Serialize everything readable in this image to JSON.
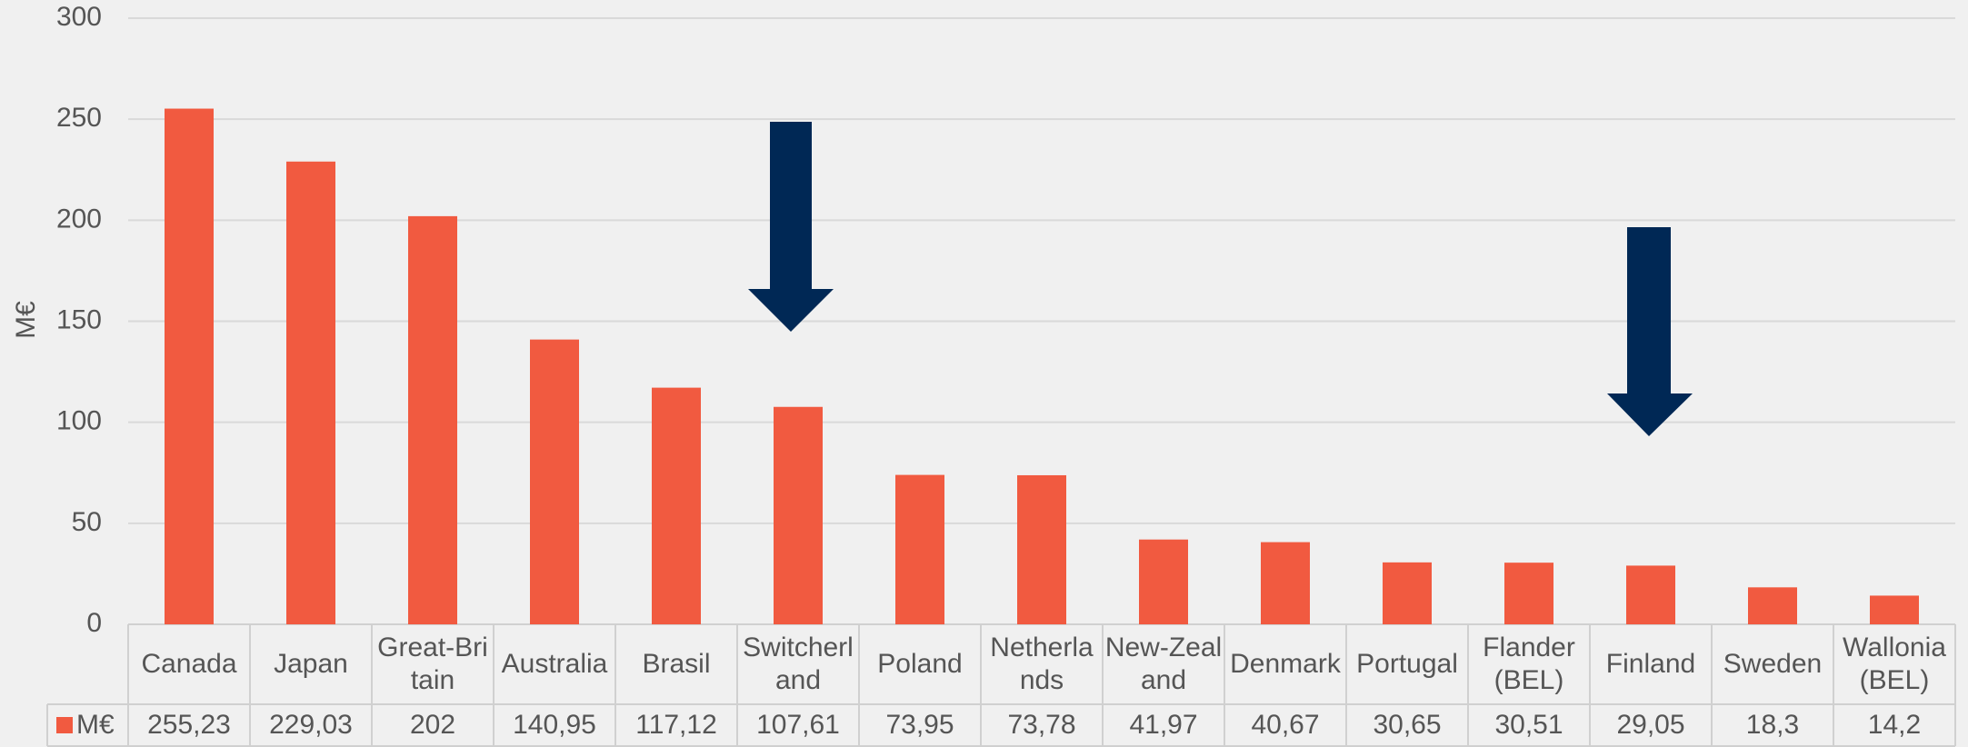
{
  "chart_data": {
    "type": "bar",
    "y_label": "M€",
    "categories": [
      "Canada",
      "Japan",
      "Great-Britain",
      "Australia",
      "Brasil",
      "Switcherland",
      "Poland",
      "Netherlands",
      "New-Zealand",
      "Denmark",
      "Portugal",
      "Flander (BEL)",
      "Finland",
      "Sweden",
      "Wallonia (BEL)"
    ],
    "series": [
      {
        "name": "M€",
        "color": "#f15a40",
        "values": [
          255.23,
          229.03,
          202,
          140.95,
          117.12,
          107.61,
          73.95,
          73.78,
          41.97,
          40.67,
          30.65,
          30.51,
          29.05,
          18.3,
          14.2
        ],
        "value_labels": [
          "255,23",
          "229,03",
          "202",
          "140,95",
          "117,12",
          "107,61",
          "73,95",
          "73,78",
          "41,97",
          "40,67",
          "30,65",
          "30,51",
          "29,05",
          "18,3",
          "14,2"
        ]
      }
    ],
    "ylim": [
      0,
      300
    ],
    "yticks": [
      0,
      50,
      100,
      150,
      200,
      250,
      300
    ],
    "grid": true
  }
}
